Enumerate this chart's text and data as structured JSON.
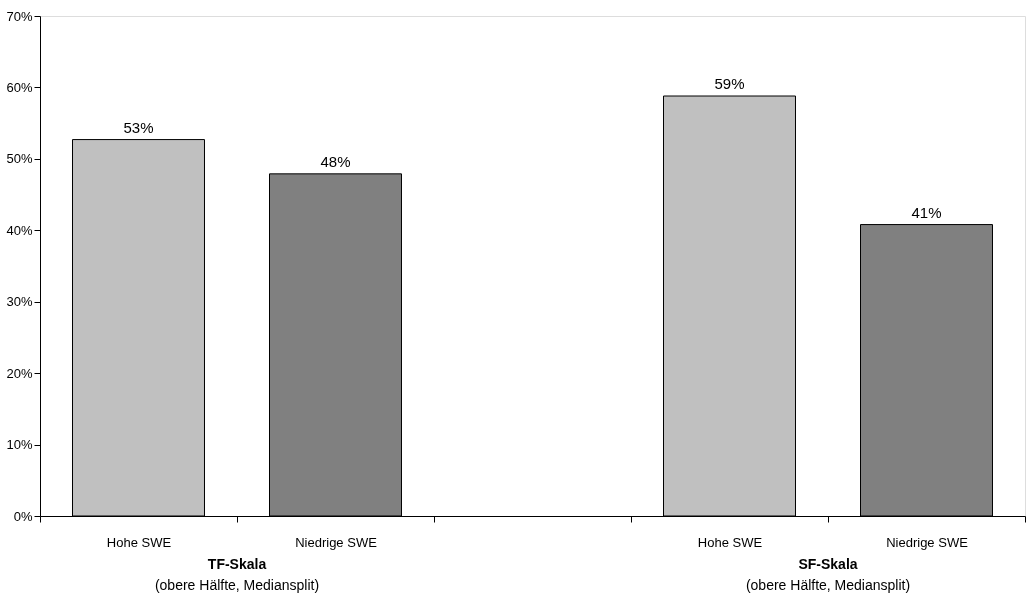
{
  "chart_data": {
    "type": "bar",
    "categories": [
      "Hohe SWE",
      "Niedrige SWE",
      null,
      "Hohe SWE",
      "Niedrige SWE"
    ],
    "values": [
      52.7,
      47.9,
      null,
      58.8,
      40.8
    ],
    "colors": [
      "#c0c0c0",
      "#808080",
      null,
      "#c0c0c0",
      "#808080"
    ],
    "value_labels": [
      "53%",
      "48%",
      null,
      "59%",
      "41%"
    ],
    "ylim": [
      0,
      70
    ],
    "yticks": [
      {
        "value": 0,
        "label": "0%"
      },
      {
        "value": 10,
        "label": "10%"
      },
      {
        "value": 20,
        "label": "20%"
      },
      {
        "value": 30,
        "label": "30%"
      },
      {
        "value": 40,
        "label": "40%"
      },
      {
        "value": 50,
        "label": "50%"
      },
      {
        "value": 60,
        "label": "60%"
      },
      {
        "value": 70,
        "label": "70%"
      }
    ],
    "annotations": [
      "TF-Skala",
      "(obere Hälfte, Mediansplit)",
      "SF-Skala",
      "(obere Hälfte, Mediansplit)"
    ],
    "grid": false
  }
}
